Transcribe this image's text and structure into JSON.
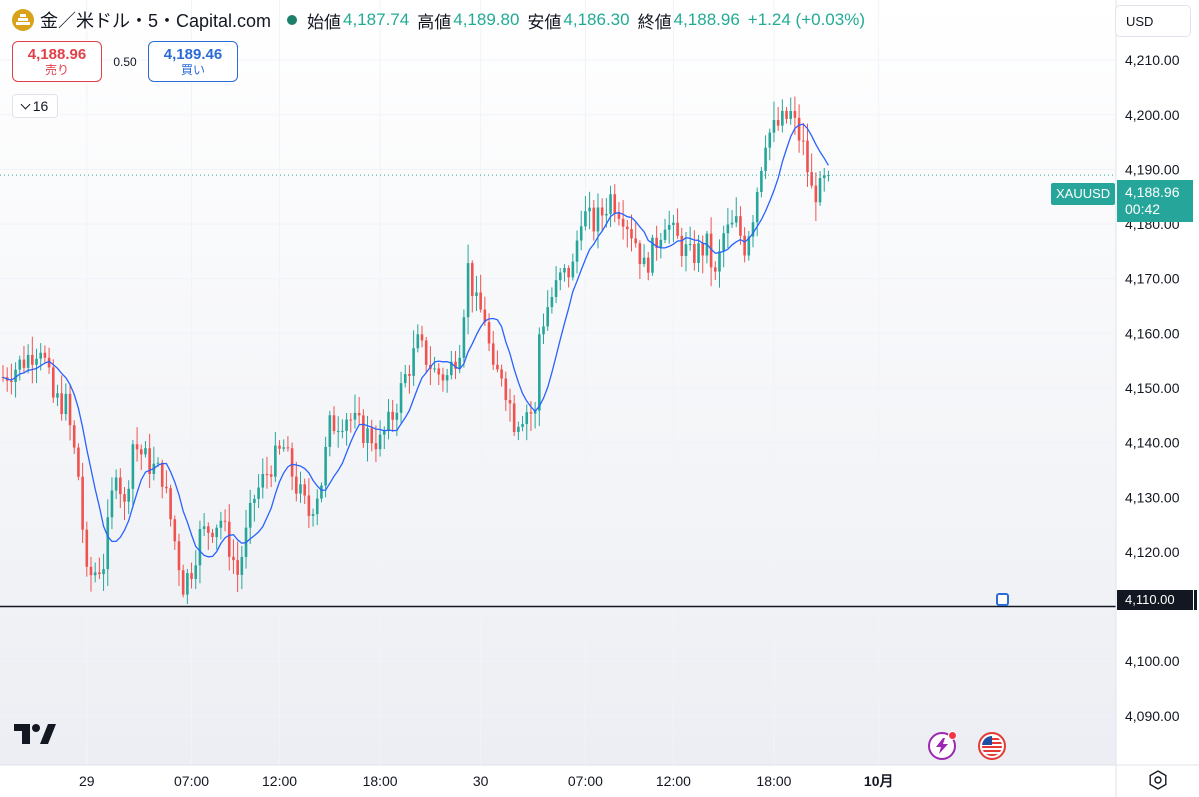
{
  "legend": {
    "symbol": "金／米ドル・5・Capital.com",
    "open_label": "始値",
    "open": "4,187.74",
    "high_label": "高値",
    "high": "4,189.80",
    "low_label": "安値",
    "low": "4,186.30",
    "close_label": "終値",
    "close": "4,188.96",
    "change": "+1.24 (+0.03%)"
  },
  "trade": {
    "sell_price": "4,188.96",
    "sell_label": "売り",
    "spread": "0.50",
    "buy_price": "4,189.46",
    "buy_label": "買い"
  },
  "indicator_toggle": {
    "count": "16"
  },
  "currency": "USD",
  "last_price": {
    "symbol": "XAUUSD",
    "price": "4,188.96",
    "countdown": "00:42"
  },
  "horizontal_line": {
    "price": "4,110.00",
    "value": 4110
  },
  "colors": {
    "up": "#26a69a",
    "down": "#ef5350",
    "ma": "#2962ff",
    "hline": "#131722"
  },
  "icons": [
    "tradingview-logo",
    "bolt-icon",
    "us-flag-icon",
    "settings-icon"
  ],
  "chart_data": {
    "type": "candlestick",
    "interval": "5",
    "y_ticks": [
      "4,210.00",
      "4,200.00",
      "4,190.00",
      "4,180.00",
      "4,170.00",
      "4,160.00",
      "4,150.00",
      "4,140.00",
      "4,130.00",
      "4,120.00",
      "4,110.00",
      "4,100.00",
      "4,090.00"
    ],
    "y_tick_values": [
      4210,
      4200,
      4190,
      4180,
      4170,
      4160,
      4150,
      4140,
      4130,
      4120,
      4110,
      4100,
      4090
    ],
    "ylim": [
      4081,
      4221
    ],
    "x_ticks": [
      "29",
      "07:00",
      "12:00",
      "18:00",
      "30",
      "07:00",
      "12:00",
      "18:00",
      "10月"
    ],
    "x_tick_bars": [
      20,
      45,
      66,
      90,
      114,
      139,
      160,
      184,
      209
    ],
    "bar_count": 223,
    "moving_average": true,
    "price_path": [
      {
        "bar": 0,
        "price": 4152
      },
      {
        "bar": 5,
        "price": 4155
      },
      {
        "bar": 9,
        "price": 4158
      },
      {
        "bar": 12,
        "price": 4148
      },
      {
        "bar": 15,
        "price": 4147
      },
      {
        "bar": 18,
        "price": 4134
      },
      {
        "bar": 20,
        "price": 4115
      },
      {
        "bar": 24,
        "price": 4118
      },
      {
        "bar": 27,
        "price": 4136
      },
      {
        "bar": 29,
        "price": 4128
      },
      {
        "bar": 31,
        "price": 4140
      },
      {
        "bar": 35,
        "price": 4136
      },
      {
        "bar": 38,
        "price": 4134
      },
      {
        "bar": 40,
        "price": 4126
      },
      {
        "bar": 43,
        "price": 4114
      },
      {
        "bar": 45,
        "price": 4117
      },
      {
        "bar": 47,
        "price": 4123
      },
      {
        "bar": 52,
        "price": 4126
      },
      {
        "bar": 56,
        "price": 4116
      },
      {
        "bar": 60,
        "price": 4130
      },
      {
        "bar": 64,
        "price": 4136
      },
      {
        "bar": 67,
        "price": 4139
      },
      {
        "bar": 70,
        "price": 4132
      },
      {
        "bar": 73,
        "price": 4127
      },
      {
        "bar": 76,
        "price": 4133
      },
      {
        "bar": 78,
        "price": 4143
      },
      {
        "bar": 82,
        "price": 4145
      },
      {
        "bar": 86,
        "price": 4142
      },
      {
        "bar": 90,
        "price": 4140
      },
      {
        "bar": 93,
        "price": 4145
      },
      {
        "bar": 96,
        "price": 4152
      },
      {
        "bar": 99,
        "price": 4158
      },
      {
        "bar": 103,
        "price": 4153
      },
      {
        "bar": 106,
        "price": 4152
      },
      {
        "bar": 109,
        "price": 4158
      },
      {
        "bar": 111,
        "price": 4172
      },
      {
        "bar": 113,
        "price": 4165
      },
      {
        "bar": 115,
        "price": 4163
      },
      {
        "bar": 117,
        "price": 4152
      },
      {
        "bar": 119,
        "price": 4153
      },
      {
        "bar": 122,
        "price": 4144
      },
      {
        "bar": 125,
        "price": 4146
      },
      {
        "bar": 127,
        "price": 4145
      },
      {
        "bar": 128,
        "price": 4160
      },
      {
        "bar": 130,
        "price": 4165
      },
      {
        "bar": 133,
        "price": 4170
      },
      {
        "bar": 136,
        "price": 4172
      },
      {
        "bar": 138,
        "price": 4182
      },
      {
        "bar": 141,
        "price": 4180
      },
      {
        "bar": 143,
        "price": 4182
      },
      {
        "bar": 145,
        "price": 4185
      },
      {
        "bar": 148,
        "price": 4182
      },
      {
        "bar": 151,
        "price": 4177
      },
      {
        "bar": 153,
        "price": 4172
      },
      {
        "bar": 155,
        "price": 4175
      },
      {
        "bar": 158,
        "price": 4181
      },
      {
        "bar": 160,
        "price": 4178
      },
      {
        "bar": 164,
        "price": 4174
      },
      {
        "bar": 168,
        "price": 4176
      },
      {
        "bar": 170,
        "price": 4170
      },
      {
        "bar": 172,
        "price": 4178
      },
      {
        "bar": 175,
        "price": 4180
      },
      {
        "bar": 177,
        "price": 4176
      },
      {
        "bar": 179,
        "price": 4182
      },
      {
        "bar": 182,
        "price": 4196
      },
      {
        "bar": 185,
        "price": 4198
      },
      {
        "bar": 188,
        "price": 4200
      },
      {
        "bar": 191,
        "price": 4194
      },
      {
        "bar": 193,
        "price": 4186
      },
      {
        "bar": 195,
        "price": 4186
      },
      {
        "bar": 197,
        "price": 4189
      }
    ]
  }
}
